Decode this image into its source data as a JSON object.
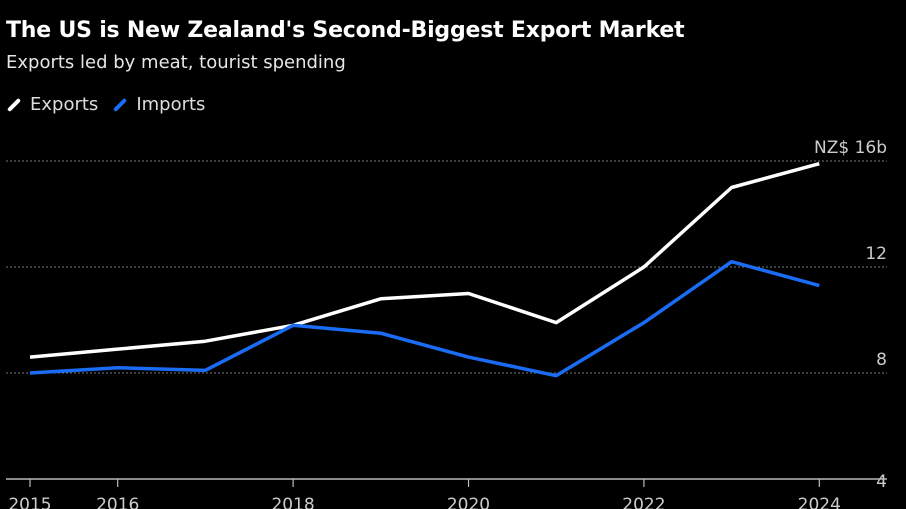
{
  "chart_data": {
    "type": "line",
    "title": "The US is New Zealand's Second-Biggest Export Market",
    "subtitle": "Exports led by meat, tourist spending",
    "x": [
      2015,
      2016,
      2017,
      2018,
      2019,
      2020,
      2021,
      2022,
      2023,
      2024
    ],
    "x_tick_labels": [
      "2015",
      "2016",
      "2018",
      "2020",
      "2022",
      "2024"
    ],
    "y_ticks": [
      4,
      8,
      12,
      16
    ],
    "y_tick_labels": [
      "4",
      "8",
      "12",
      "NZ$ 16b"
    ],
    "ylim": [
      4,
      16.5
    ],
    "grid": true,
    "legend_position": "top-left",
    "series": [
      {
        "name": "Exports",
        "color": "#ffffff",
        "values": [
          8.6,
          8.9,
          9.2,
          9.8,
          10.8,
          11.0,
          9.9,
          12.0,
          15.0,
          15.9
        ]
      },
      {
        "name": "Imports",
        "color": "#1a6cf5",
        "values": [
          8.0,
          8.2,
          8.1,
          9.8,
          9.5,
          8.6,
          7.9,
          9.9,
          12.2,
          11.3
        ]
      }
    ]
  }
}
